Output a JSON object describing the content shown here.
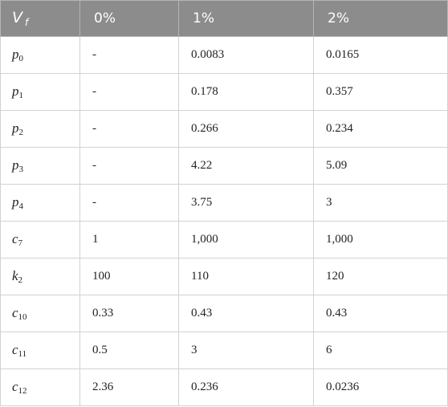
{
  "header": {
    "var_base": "V",
    "var_sub": "f",
    "col1": "0%",
    "col2": "1%",
    "col3": "2%"
  },
  "rows": [
    {
      "base": "p",
      "sub": "0",
      "v0": "-",
      "v1": "0.0083",
      "v2": "0.0165"
    },
    {
      "base": "p",
      "sub": "1",
      "v0": "-",
      "v1": "0.178",
      "v2": "0.357"
    },
    {
      "base": "p",
      "sub": "2",
      "v0": "-",
      "v1": "0.266",
      "v2": "0.234"
    },
    {
      "base": "p",
      "sub": "3",
      "v0": "-",
      "v1": "4.22",
      "v2": "5.09"
    },
    {
      "base": "p",
      "sub": "4",
      "v0": "-",
      "v1": "3.75",
      "v2": "3"
    },
    {
      "base": "c",
      "sub": "7",
      "v0": "1",
      "v1": "1,000",
      "v2": "1,000"
    },
    {
      "base": "k",
      "sub": "2",
      "v0": "100",
      "v1": "110",
      "v2": "120"
    },
    {
      "base": "c",
      "sub": "10",
      "v0": "0.33",
      "v1": "0.43",
      "v2": "0.43"
    },
    {
      "base": "c",
      "sub": "11",
      "v0": "0.5",
      "v1": "3",
      "v2": "6"
    },
    {
      "base": "c",
      "sub": "12",
      "v0": "2.36",
      "v1": "0.236",
      "v2": "0.0236"
    }
  ]
}
